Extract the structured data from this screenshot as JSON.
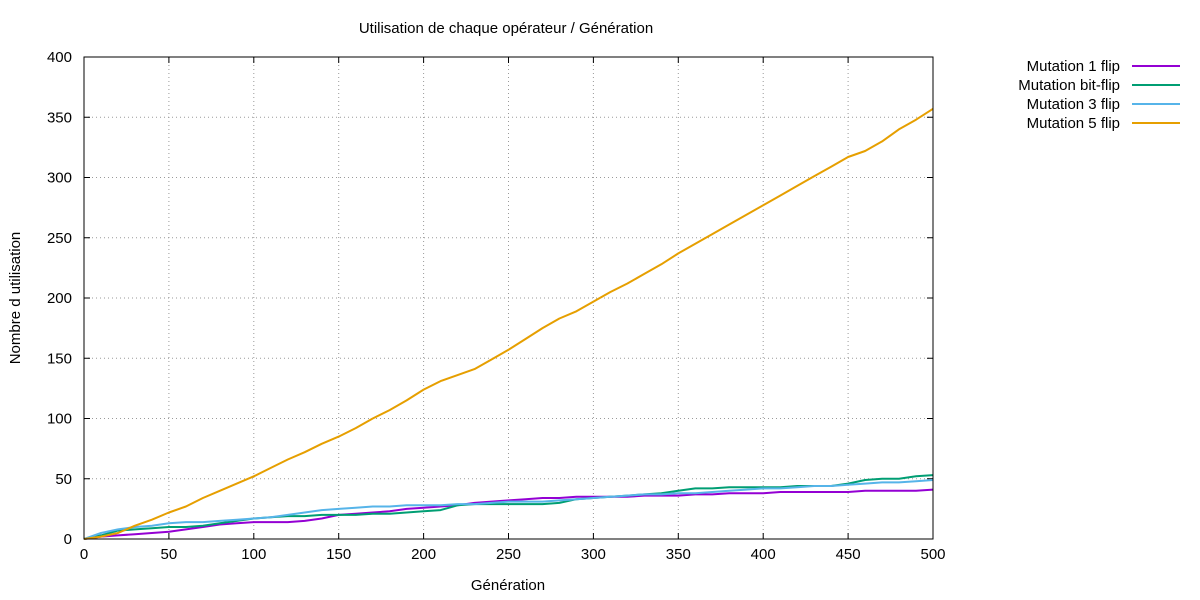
{
  "chart_data": {
    "type": "line",
    "title": "Utilisation de chaque opérateur / Génération",
    "xlabel": "Génération",
    "ylabel": "Nombre d utilisation",
    "xlim": [
      0,
      500
    ],
    "ylim": [
      0,
      400
    ],
    "xticks": [
      0,
      50,
      100,
      150,
      200,
      250,
      300,
      350,
      400,
      450,
      500
    ],
    "yticks": [
      0,
      50,
      100,
      150,
      200,
      250,
      300,
      350,
      400
    ],
    "grid": true,
    "legend_position": "top-right, outside plot",
    "series": [
      {
        "name": "Mutation 1 flip",
        "color": "#9400d3",
        "x": [
          0,
          10,
          20,
          30,
          40,
          50,
          60,
          70,
          80,
          90,
          100,
          110,
          120,
          130,
          140,
          150,
          160,
          170,
          180,
          190,
          200,
          210,
          220,
          230,
          240,
          250,
          260,
          270,
          280,
          290,
          300,
          310,
          320,
          330,
          340,
          350,
          360,
          370,
          380,
          390,
          400,
          410,
          420,
          430,
          440,
          450,
          460,
          470,
          480,
          490,
          500
        ],
        "values": [
          0,
          2,
          3,
          4,
          5,
          6,
          8,
          10,
          12,
          13,
          14,
          14,
          14,
          15,
          17,
          20,
          21,
          22,
          23,
          25,
          26,
          27,
          28,
          30,
          31,
          32,
          33,
          34,
          34,
          35,
          35,
          35,
          35,
          36,
          36,
          36,
          37,
          37,
          38,
          38,
          38,
          39,
          39,
          39,
          39,
          39,
          40,
          40,
          40,
          40,
          41
        ]
      },
      {
        "name": "Mutation bit-flip",
        "color": "#009e73",
        "x": [
          0,
          10,
          20,
          30,
          40,
          50,
          60,
          70,
          80,
          90,
          100,
          110,
          120,
          130,
          140,
          150,
          160,
          170,
          180,
          190,
          200,
          210,
          220,
          230,
          240,
          250,
          260,
          270,
          280,
          290,
          300,
          310,
          320,
          330,
          340,
          350,
          360,
          370,
          380,
          390,
          400,
          410,
          420,
          430,
          440,
          450,
          460,
          470,
          480,
          490,
          500
        ],
        "values": [
          0,
          3,
          7,
          8,
          9,
          10,
          10,
          11,
          13,
          15,
          17,
          18,
          19,
          19,
          20,
          20,
          20,
          21,
          21,
          22,
          23,
          24,
          28,
          29,
          29,
          29,
          29,
          29,
          30,
          33,
          34,
          35,
          36,
          37,
          38,
          40,
          42,
          42,
          43,
          43,
          43,
          43,
          44,
          44,
          44,
          46,
          49,
          50,
          50,
          52,
          53
        ]
      },
      {
        "name": "Mutation 3 flip",
        "color": "#56b4e9",
        "x": [
          0,
          10,
          20,
          30,
          40,
          50,
          60,
          70,
          80,
          90,
          100,
          110,
          120,
          130,
          140,
          150,
          160,
          170,
          180,
          190,
          200,
          210,
          220,
          230,
          240,
          250,
          260,
          270,
          280,
          290,
          300,
          310,
          320,
          330,
          340,
          350,
          360,
          370,
          380,
          390,
          400,
          410,
          420,
          430,
          440,
          450,
          460,
          470,
          480,
          490,
          500
        ],
        "values": [
          0,
          5,
          8,
          10,
          11,
          13,
          14,
          14,
          15,
          16,
          17,
          18,
          20,
          22,
          24,
          25,
          26,
          27,
          27,
          28,
          28,
          28,
          29,
          29,
          30,
          31,
          31,
          31,
          32,
          33,
          34,
          35,
          36,
          37,
          37,
          38,
          38,
          39,
          40,
          41,
          42,
          42,
          43,
          44,
          44,
          45,
          46,
          47,
          47,
          48,
          49
        ]
      },
      {
        "name": "Mutation 5 flip",
        "color": "#e69f00",
        "x": [
          0,
          10,
          20,
          30,
          40,
          50,
          60,
          70,
          80,
          90,
          100,
          110,
          120,
          130,
          140,
          150,
          160,
          170,
          180,
          190,
          200,
          210,
          220,
          230,
          240,
          250,
          260,
          270,
          280,
          290,
          300,
          310,
          320,
          330,
          340,
          350,
          360,
          370,
          380,
          390,
          400,
          410,
          420,
          430,
          440,
          450,
          460,
          470,
          480,
          490,
          500
        ],
        "values": [
          0,
          2,
          5,
          11,
          16,
          22,
          27,
          34,
          40,
          46,
          52,
          59,
          66,
          72,
          79,
          85,
          92,
          100,
          107,
          115,
          124,
          131,
          136,
          141,
          149,
          157,
          166,
          175,
          183,
          189,
          197,
          205,
          212,
          220,
          228,
          237,
          245,
          253,
          261,
          269,
          277,
          285,
          293,
          301,
          309,
          317,
          322,
          330,
          340,
          348,
          357
        ]
      }
    ]
  }
}
